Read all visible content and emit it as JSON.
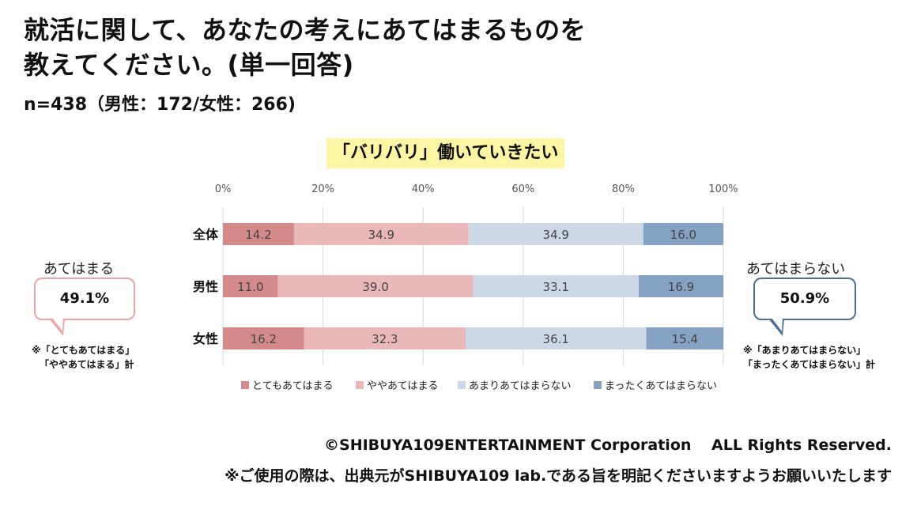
{
  "header": {
    "title_line1": "就活に関して、あなたの考えにあてはまるものを",
    "title_line2": "教えてください。(単一回答)",
    "subtitle": "n=438（男性：172/女性：266)"
  },
  "chart_data": {
    "type": "bar",
    "orientation": "horizontal-stacked-100",
    "title": "「バリバリ」働いていきたい",
    "categories": [
      "全体",
      "男性",
      "女性"
    ],
    "xticks": [
      "0%",
      "20%",
      "40%",
      "60%",
      "80%",
      "100%"
    ],
    "xlim": [
      0,
      100
    ],
    "grid": true,
    "legend_position": "bottom",
    "series": [
      {
        "name": "とてもあてはまる",
        "color": "#d4898a",
        "values": [
          14.2,
          11.0,
          16.2
        ],
        "labels": [
          "14.2",
          "11.0",
          "16.2"
        ]
      },
      {
        "name": "ややあてはまる",
        "color": "#eab8b9",
        "values": [
          34.9,
          39.0,
          32.3
        ],
        "labels": [
          "34.9",
          "39.0",
          "32.3"
        ]
      },
      {
        "name": "あまりあてはまらない",
        "color": "#cdd8e7",
        "values": [
          34.9,
          33.1,
          36.1
        ],
        "labels": [
          "34.9",
          "33.1",
          "36.1"
        ]
      },
      {
        "name": "まったくあてはまらない",
        "color": "#86a2c3",
        "values": [
          16.0,
          16.9,
          15.4
        ],
        "labels": [
          "16.0",
          "16.9",
          "15.4"
        ]
      }
    ]
  },
  "callouts": {
    "left": {
      "heading": "あてはまる",
      "value": "49.1%",
      "note_line1": "※「とてもあてはまる」",
      "note_line2": "「ややあてはまる」計",
      "border_color": "#f1a3a3"
    },
    "right": {
      "heading": "あてはまらない",
      "value": "50.9%",
      "note_line1": "※「あまりあてはまらない」",
      "note_line2": "「まったくあてはまらない」計",
      "border_color": "#4a6f98"
    }
  },
  "footer": {
    "copyright": "©SHIBUYA109ENTERTAINMENT Corporation　 ALL Rights Reserved.",
    "notice": "※ご使用の際は、出典元がSHIBUYA109 lab.である旨を明記くださいますようお願いいたします"
  }
}
